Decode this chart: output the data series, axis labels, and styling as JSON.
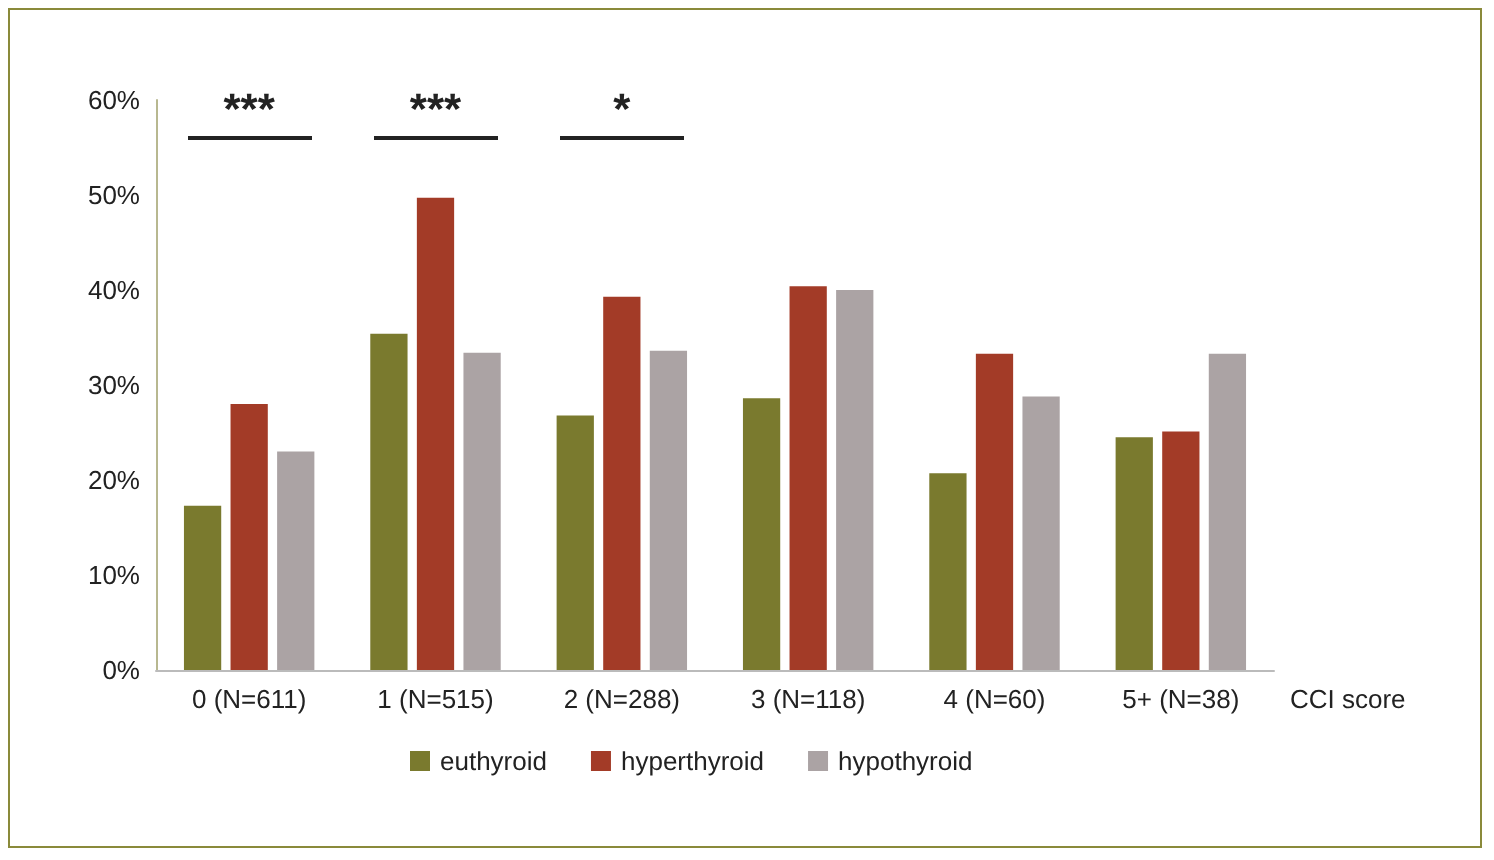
{
  "chart_data": {
    "type": "bar",
    "xlabel": "CCI score",
    "categories": [
      "0 (N=611)",
      "1 (N=515)",
      "2 (N=288)",
      "3 (N=118)",
      "4 (N=60)",
      "5+ (N=38)"
    ],
    "series": [
      {
        "name": "euthyroid",
        "color": "#7a7a2e",
        "values": [
          17.3,
          35.4,
          26.8,
          28.6,
          20.7,
          24.5
        ]
      },
      {
        "name": "hyperthyroid",
        "color": "#a33b27",
        "values": [
          28,
          49.7,
          39.3,
          40.4,
          33.3,
          25.1
        ]
      },
      {
        "name": "hypothyroid",
        "color": "#aba3a4",
        "values": [
          23,
          33.4,
          33.6,
          40,
          28.8,
          33.3
        ]
      }
    ],
    "ylim": [
      0,
      60
    ],
    "yticks": [
      {
        "value": 0,
        "label": "0%"
      },
      {
        "value": 10,
        "label": "10%"
      },
      {
        "value": 20,
        "label": "20%"
      },
      {
        "value": 30,
        "label": "30%"
      },
      {
        "value": 40,
        "label": "40%"
      },
      {
        "value": 50,
        "label": "50%"
      },
      {
        "value": 60,
        "label": "60%"
      }
    ],
    "annotations": [
      "***",
      "***",
      "*"
    ],
    "grid": false,
    "legend": "bottom"
  }
}
